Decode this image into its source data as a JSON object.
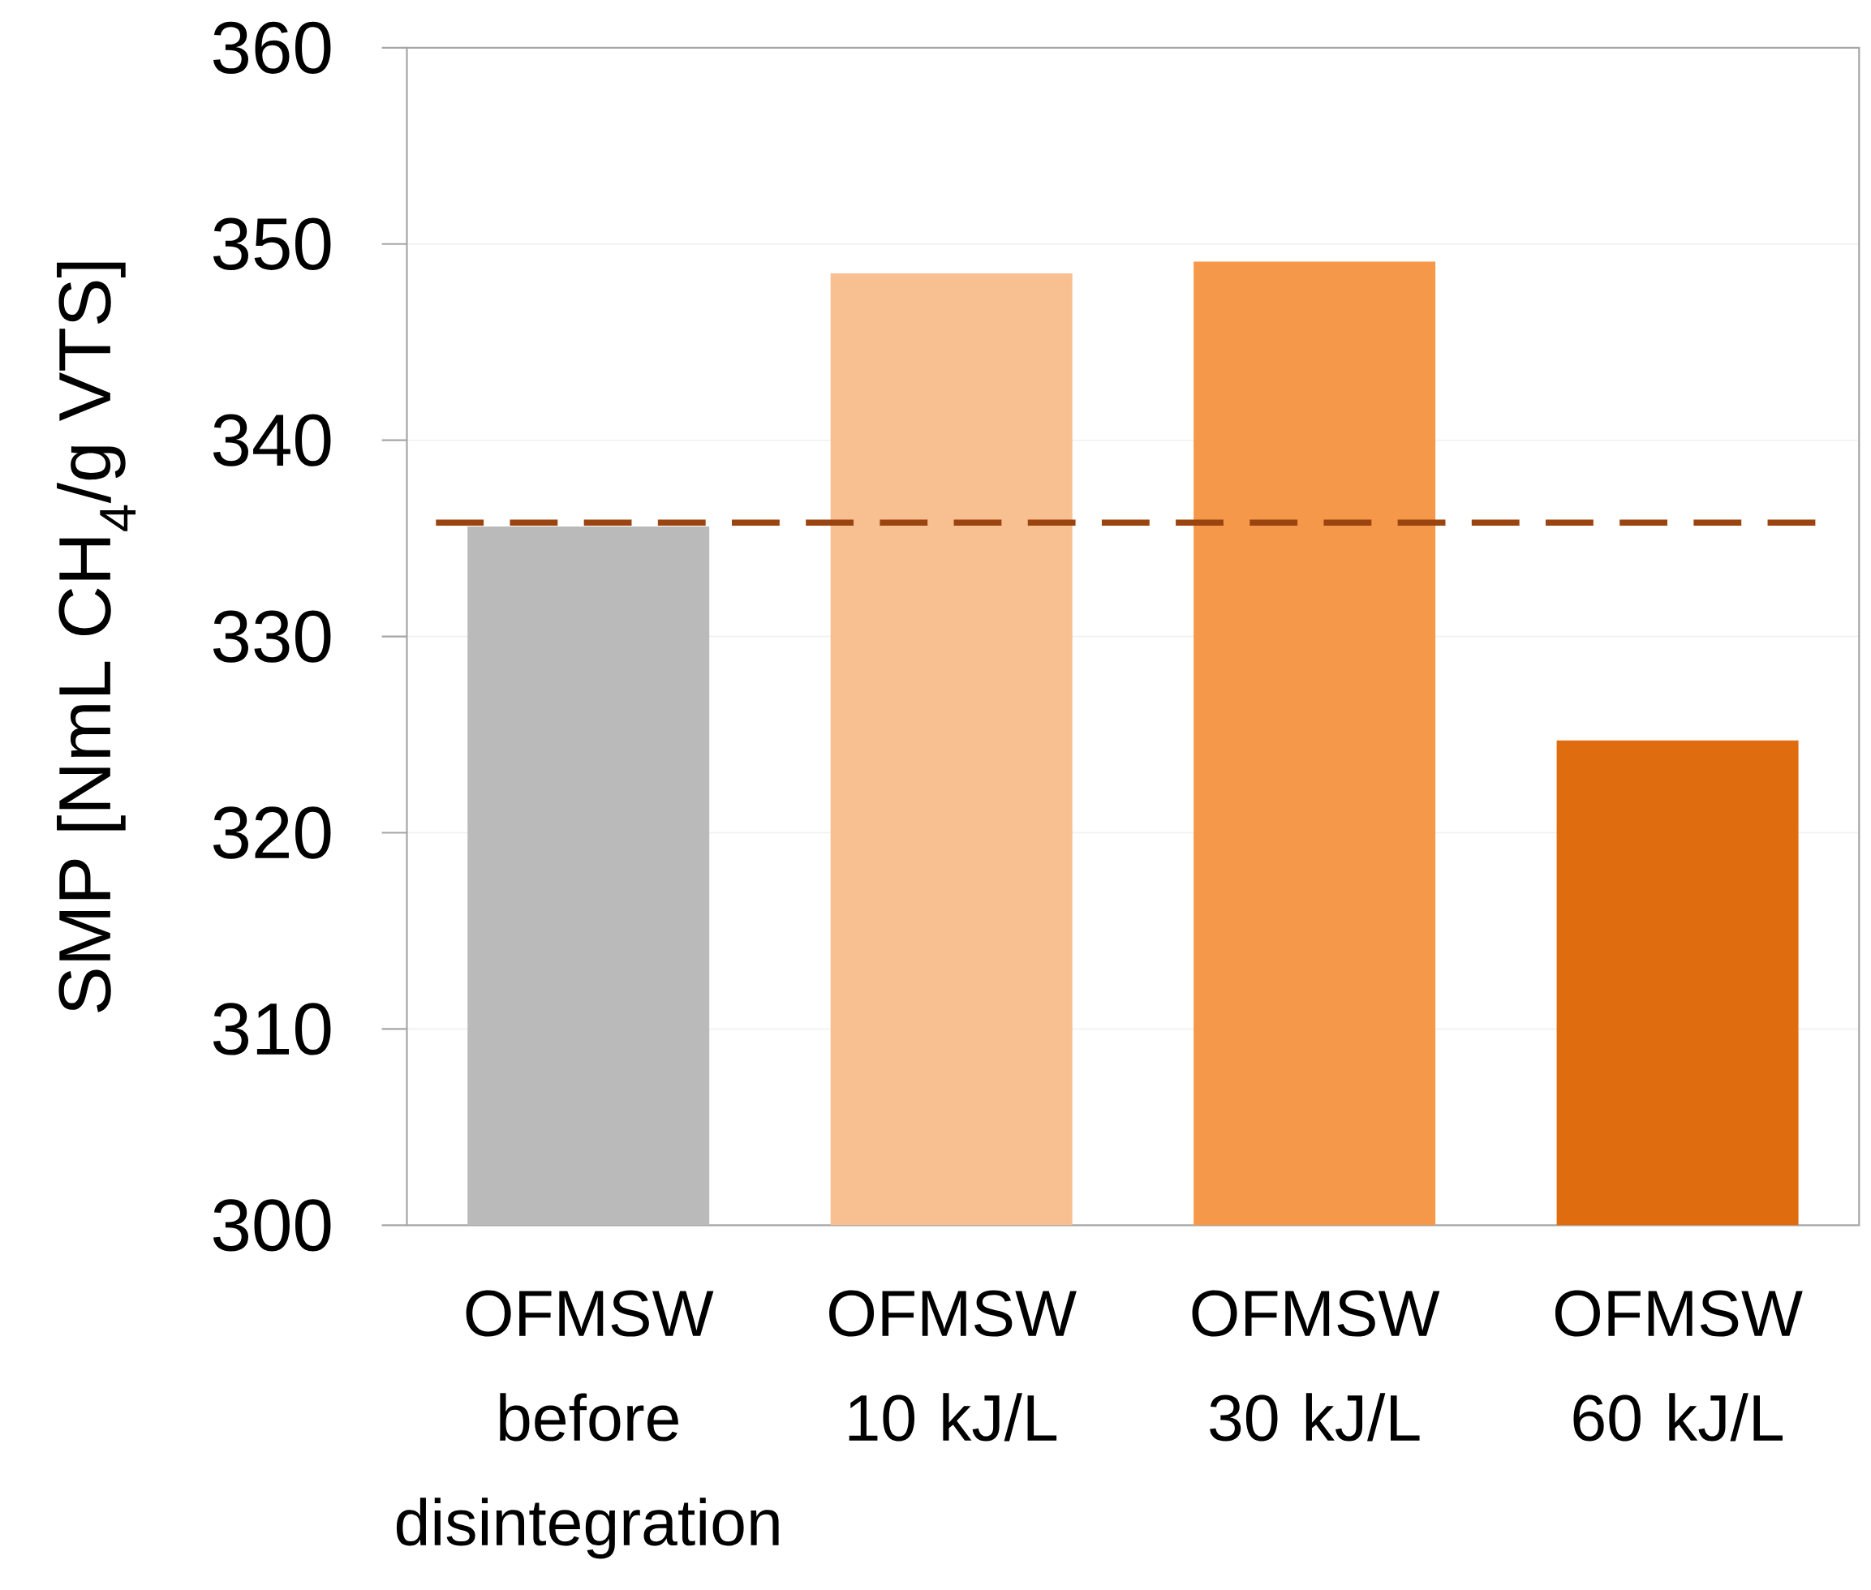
{
  "chart_data": {
    "type": "bar",
    "ylabel": "SMP [NmL CH$_{4}$/g VTS]",
    "categories": [
      "OFMSW before disintegration",
      "OFMSW 10 kJ/L",
      "OFMSW 30 kJ/L",
      "OFMSW 60 kJ/L"
    ],
    "values": [
      335.6,
      348.5,
      349.1,
      324.7
    ],
    "colors": [
      "#bababa",
      "#f8c090",
      "#f5984a",
      "#e06c10"
    ],
    "ylim": [
      300,
      360
    ],
    "yticks": [
      300,
      310,
      320,
      330,
      340,
      350,
      360
    ],
    "grid": "y",
    "ref_lines": [
      {
        "axis": "y",
        "value": 335.8,
        "color": "#9a4410",
        "line_style": "dashed"
      }
    ]
  }
}
